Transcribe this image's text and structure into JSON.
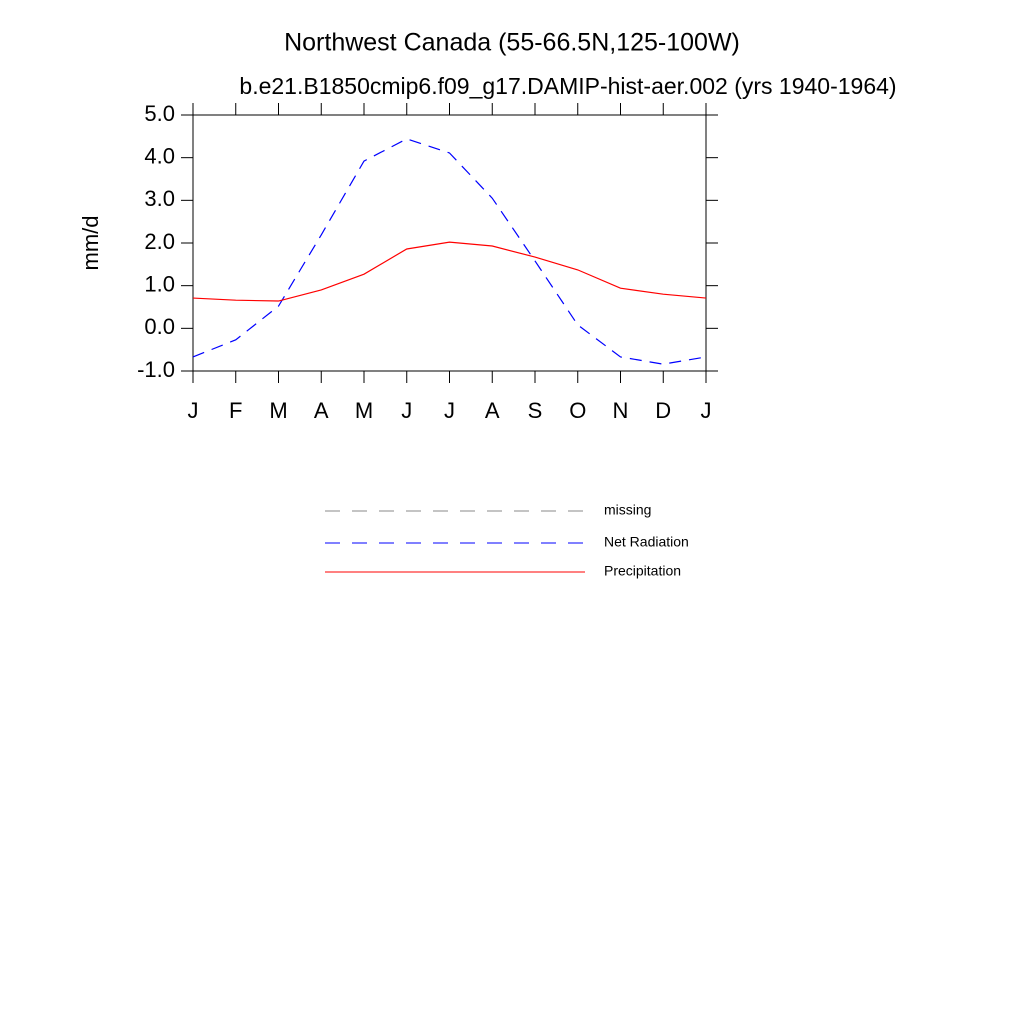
{
  "chart_data": {
    "type": "line",
    "title": "Northwest Canada (55-66.5N,125-100W)",
    "subtitle": "b.e21.B1850cmip6.f09_g17.DAMIP-hist-aer.002 (yrs 1940-1964)",
    "y_label": "mm/d",
    "categories": [
      "J",
      "F",
      "M",
      "A",
      "M",
      "J",
      "J",
      "A",
      "S",
      "O",
      "N",
      "D",
      "J"
    ],
    "ylim": [
      -1,
      5
    ],
    "yticks": [
      {
        "value": 5,
        "label": "5.0"
      },
      {
        "value": 4,
        "label": "4.0"
      },
      {
        "value": 3,
        "label": "3.0"
      },
      {
        "value": 2,
        "label": "2.0"
      },
      {
        "value": 1,
        "label": "1.0"
      },
      {
        "value": 0,
        "label": "0.0"
      },
      {
        "value": -1,
        "label": "-1.0"
      }
    ],
    "series": [
      {
        "name": "missing",
        "color": "#888888",
        "dashed": true,
        "values": [
          null,
          null,
          null,
          null,
          null,
          null,
          null,
          null,
          null,
          null,
          null,
          null,
          null
        ]
      },
      {
        "name": "Net Radiation",
        "color": "#0000ff",
        "dashed": true,
        "values": [
          -0.67,
          -0.27,
          0.52,
          2.19,
          3.92,
          4.44,
          4.11,
          3.05,
          1.58,
          0.08,
          -0.67,
          -0.84,
          -0.67
        ]
      },
      {
        "name": "Precipitation",
        "color": "#ff0000",
        "dashed": false,
        "values": [
          0.71,
          0.66,
          0.64,
          0.9,
          1.27,
          1.86,
          2.02,
          1.93,
          1.67,
          1.37,
          0.94,
          0.8,
          0.71
        ]
      }
    ]
  }
}
